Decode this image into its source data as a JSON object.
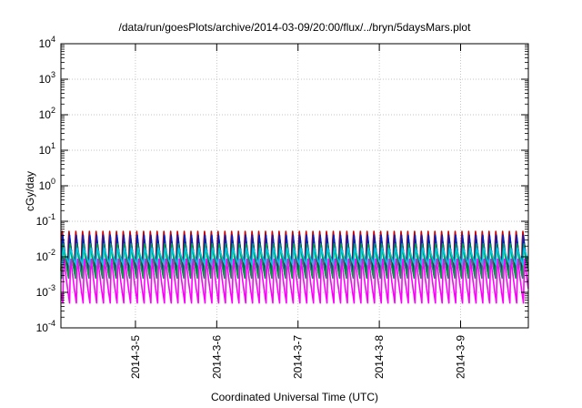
{
  "chart_data": {
    "type": "line",
    "title": "/data/run/goesPlots/archive/2014-03-09/20:00/flux/../bryn/5daysMars.plot",
    "xlabel": "Coordinated Universal Time (UTC)",
    "ylabel": "cGy/day",
    "yscale": "log",
    "ylim": [
      0.0001,
      10000
    ],
    "xlim": [
      "2014-03-04 02:00",
      "2014-03-09 20:00"
    ],
    "grid": true,
    "legend": "none",
    "y_ticks": [
      {
        "base": "10",
        "exp": "-4"
      },
      {
        "base": "10",
        "exp": "-3"
      },
      {
        "base": "10",
        "exp": "-2"
      },
      {
        "base": "10",
        "exp": "-1"
      },
      {
        "base": "10",
        "exp": "0"
      },
      {
        "base": "10",
        "exp": "1"
      },
      {
        "base": "10",
        "exp": "2"
      },
      {
        "base": "10",
        "exp": "3"
      },
      {
        "base": "10",
        "exp": "4"
      }
    ],
    "x_ticks": [
      "2014-3-5",
      "2014-3-6",
      "2014-3-7",
      "2014-3-8",
      "2014-3-9"
    ],
    "pattern": {
      "period_hours": 2.0,
      "cycles_per_day": 12
    },
    "series": [
      {
        "color": "#d00000",
        "peak": 0.07,
        "trough": 0.004
      },
      {
        "color": "#0020c0",
        "peak": 0.055,
        "trough": 0.003
      },
      {
        "color": "#00a040",
        "peak": 0.03,
        "trough": 0.0025
      },
      {
        "color": "#00c8e0",
        "peak": 0.02,
        "trough": 0.006
      },
      {
        "color": "#ff00ff",
        "peak": 0.012,
        "trough": 0.0005
      }
    ]
  }
}
